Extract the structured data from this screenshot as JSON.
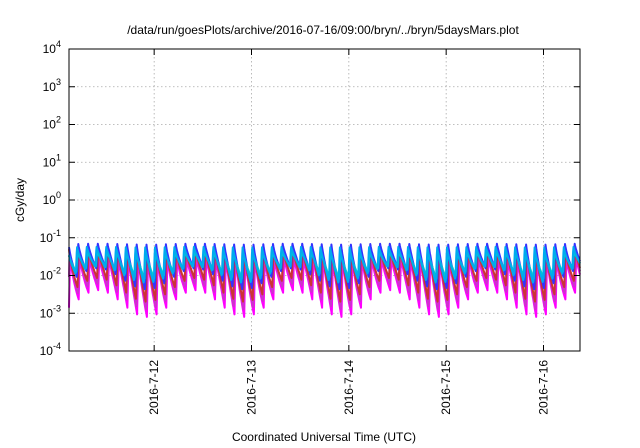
{
  "chart_data": {
    "type": "line",
    "title": "/data/run/goesPlots/archive/2016-07-16/09:00/bryn/../bryn/5daysMars.plot",
    "xlabel": "Coordinated Universal Time (UTC)",
    "ylabel": "cGy/day",
    "xlim": [
      "2016-07-11T03:00",
      "2016-07-16T09:00"
    ],
    "ylim": [
      0.0001,
      10000
    ],
    "yscale": "log",
    "grid": true,
    "x_ticks": [
      "2016-7-12",
      "2016-7-13",
      "2016-7-14",
      "2016-7-15",
      "2016-7-16"
    ],
    "y_ticks": [
      {
        "value": 0.0001,
        "base": "10",
        "exp": "-4"
      },
      {
        "value": 0.001,
        "base": "10",
        "exp": "-3"
      },
      {
        "value": 0.01,
        "base": "10",
        "exp": "-2"
      },
      {
        "value": 0.1,
        "base": "10",
        "exp": "-1"
      },
      {
        "value": 1,
        "base": "10",
        "exp": "0"
      },
      {
        "value": 10,
        "base": "10",
        "exp": "1"
      },
      {
        "value": 100,
        "base": "10",
        "exp": "2"
      },
      {
        "value": 1000,
        "base": "10",
        "exp": "3"
      },
      {
        "value": 10000,
        "base": "10",
        "exp": "4"
      }
    ],
    "series_colors": [
      "#ff00ff",
      "#cc33cc",
      "#cc3333",
      "#3333ff",
      "#00cccc",
      "#00aaee"
    ],
    "series_envelopes": [
      {
        "color": "#ff00ff",
        "peak": 0.03,
        "trough": 0.0008
      },
      {
        "color": "#cc33cc",
        "peak": 0.04,
        "trough": 0.0012
      },
      {
        "color": "#cc3333",
        "peak": 0.05,
        "trough": 0.002
      },
      {
        "color": "#3333ff",
        "peak": 0.075,
        "trough": 0.004
      },
      {
        "color": "#00cccc",
        "peak": 0.045,
        "trough": 0.008
      },
      {
        "color": "#00aaee",
        "peak": 0.06,
        "trough": 0.006
      }
    ]
  }
}
